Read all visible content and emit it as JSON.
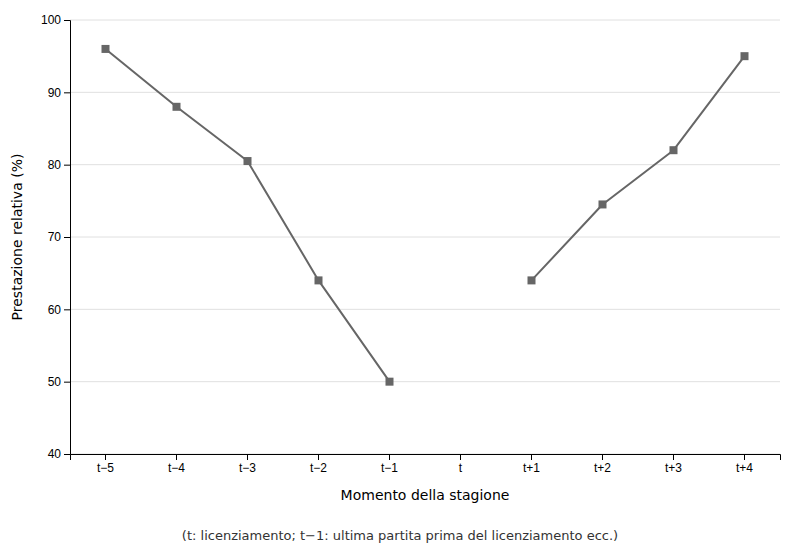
{
  "chart_data": {
    "type": "line",
    "categories": [
      "t−5",
      "t−4",
      "t−3",
      "t−2",
      "t−1",
      "t",
      "t+1",
      "t+2",
      "t+3",
      "t+4"
    ],
    "values": [
      96,
      88,
      80.5,
      64,
      50,
      null,
      64,
      74.5,
      82,
      95
    ],
    "color": "#666666",
    "marker": "square",
    "ylim": [
      40,
      100
    ],
    "yticks": [
      40,
      50,
      60,
      70,
      80,
      90,
      100
    ],
    "ylabel": "Prestazione relativa (%)",
    "xlabel": "Momento della stagione",
    "caption": "(t: licenziamento; t−1: ultima partita prima del licenziamento ecc.)",
    "grid": true
  }
}
